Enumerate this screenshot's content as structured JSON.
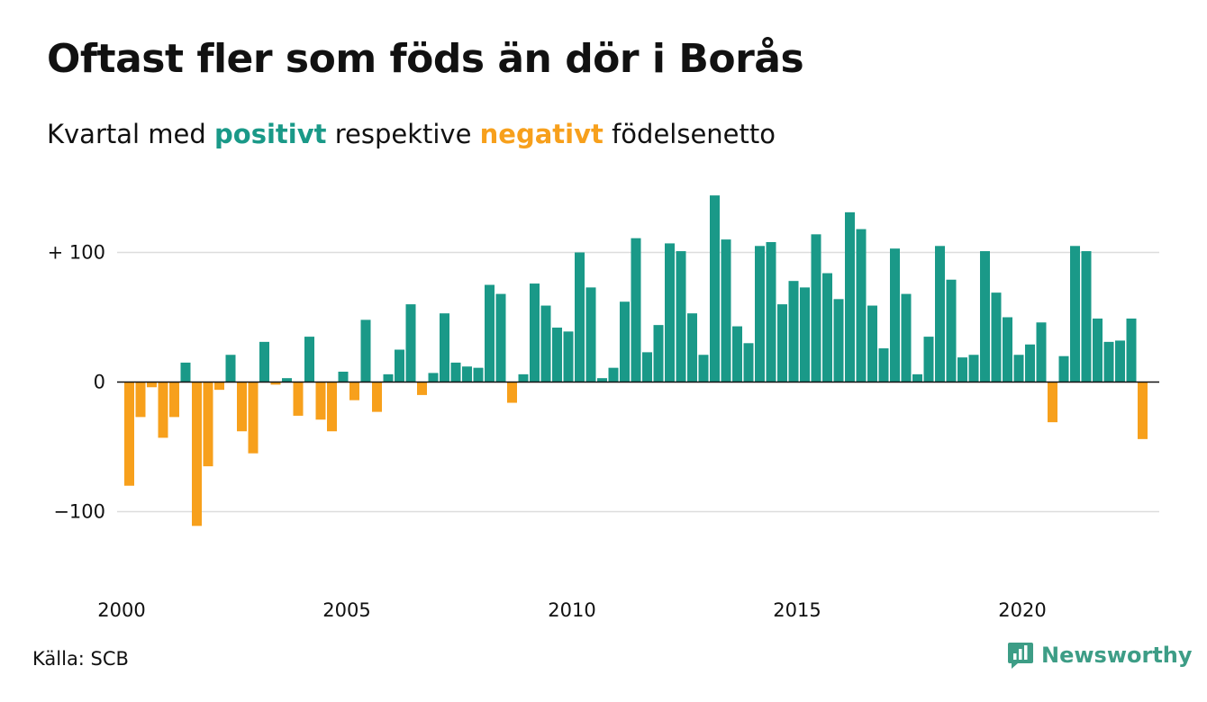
{
  "title": "Oftast fler som föds än dör i Borås",
  "subtitle": {
    "prefix": "Kvartal med ",
    "positive_word": "positivt",
    "middle": " respektive ",
    "negative_word": "negativt",
    "suffix": " födelsenetto"
  },
  "source": "Källa: SCB",
  "brand": {
    "name": "Newsworthy",
    "icon": "newsworthy-logo-icon"
  },
  "colors": {
    "positive": "#1a9988",
    "negative": "#f7a01c",
    "grid": "#dddddd",
    "axis": "#111111"
  },
  "chart_data": {
    "type": "bar",
    "title": "Oftast fler som föds än dör i Borås",
    "xlabel": "",
    "ylabel": "",
    "ylim": [
      -150,
      150
    ],
    "yticks": [
      100,
      0,
      -100
    ],
    "ytick_labels": [
      "+ 100",
      "0",
      "−100"
    ],
    "xticks": [
      2000,
      2005,
      2010,
      2015,
      2020
    ],
    "xtick_labels": [
      "2000",
      "2005",
      "2010",
      "2015",
      "2020"
    ],
    "grid": true,
    "series": [
      {
        "values": [
          -80,
          -27,
          -4,
          -43,
          -27,
          15,
          -111,
          -65,
          -6,
          21,
          -38,
          -55,
          31,
          -2,
          3,
          -26,
          35,
          -29,
          -38,
          8,
          -14,
          48,
          -23,
          6,
          25,
          60,
          -10,
          7,
          53,
          15,
          12,
          11,
          75,
          68,
          -16,
          6,
          76,
          59,
          42,
          39,
          100,
          73,
          3,
          11,
          62,
          111,
          23,
          44,
          107,
          101,
          53,
          21,
          144,
          110,
          43,
          30,
          105,
          108,
          60,
          78,
          73,
          114,
          84,
          64,
          131,
          118,
          59,
          26,
          103,
          68,
          6,
          35,
          105,
          79,
          19,
          21,
          101,
          69,
          50,
          21,
          29,
          46,
          -31,
          20,
          105,
          101,
          49,
          31,
          32,
          49,
          -44
        ]
      }
    ]
  }
}
